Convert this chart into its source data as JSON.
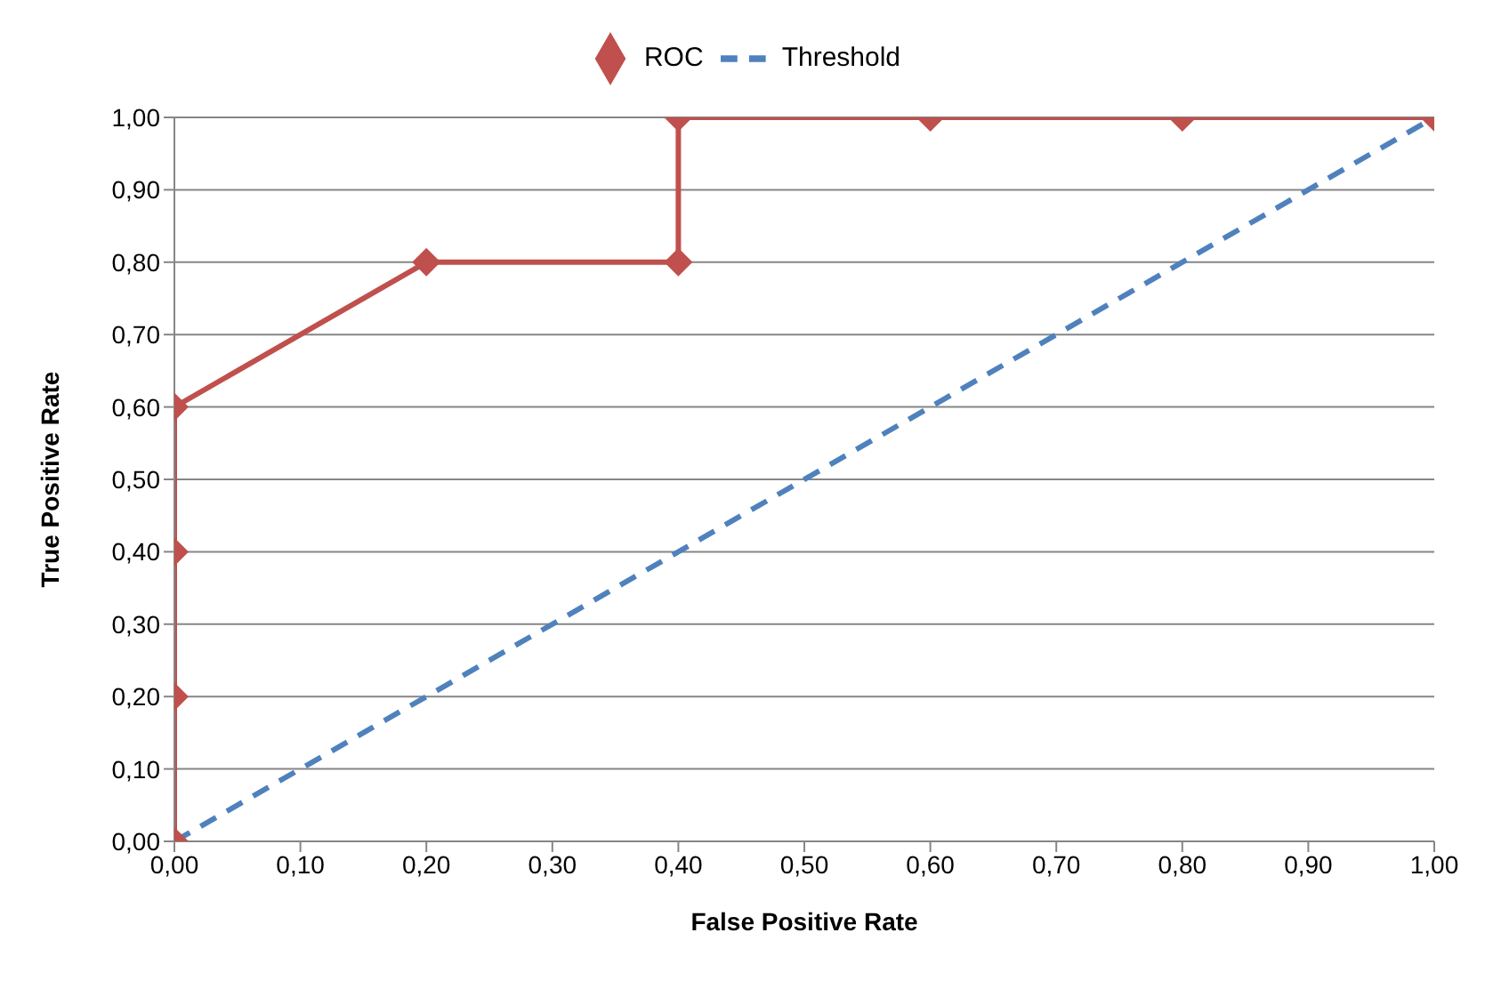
{
  "chart_data": {
    "type": "line",
    "xlabel": "False Positive Rate",
    "ylabel": "True Positive Rate",
    "legend": "top",
    "grid": "y",
    "xlim": [
      0,
      1
    ],
    "ylim": [
      0,
      1
    ],
    "xticks": [
      {
        "value": 0,
        "label": "0,00"
      },
      {
        "value": 0.1,
        "label": "0,10"
      },
      {
        "value": 0.2,
        "label": "0,20"
      },
      {
        "value": 0.3,
        "label": "0,30"
      },
      {
        "value": 0.4,
        "label": "0,40"
      },
      {
        "value": 0.5,
        "label": "0,50"
      },
      {
        "value": 0.6,
        "label": "0,60"
      },
      {
        "value": 0.7,
        "label": "0,70"
      },
      {
        "value": 0.8,
        "label": "0,80"
      },
      {
        "value": 0.9,
        "label": "0,90"
      },
      {
        "value": 1,
        "label": "1,00"
      }
    ],
    "yticks": [
      {
        "value": 0,
        "label": "0,00"
      },
      {
        "value": 0.1,
        "label": "0,10"
      },
      {
        "value": 0.2,
        "label": "0,20"
      },
      {
        "value": 0.3,
        "label": "0,30"
      },
      {
        "value": 0.4,
        "label": "0,40"
      },
      {
        "value": 0.5,
        "label": "0,50"
      },
      {
        "value": 0.6,
        "label": "0,60"
      },
      {
        "value": 0.7,
        "label": "0,70"
      },
      {
        "value": 0.8,
        "label": "0,80"
      },
      {
        "value": 0.9,
        "label": "0,90"
      },
      {
        "value": 1,
        "label": "1,00"
      }
    ],
    "series": [
      {
        "name": "Threshold",
        "color": "#4f81bd",
        "line_style": "dashed",
        "marker": "none",
        "x": [
          0,
          1
        ],
        "values": [
          0,
          1
        ]
      },
      {
        "name": "ROC",
        "color": "#c0504d",
        "line_style": "solid",
        "marker": "diamond",
        "x": [
          0,
          0,
          0,
          0,
          0.2,
          0.4,
          0.4,
          0.6,
          0.8,
          1
        ],
        "values": [
          0,
          0.2,
          0.4,
          0.6,
          0.8,
          0.8,
          1,
          1,
          1,
          1
        ]
      }
    ]
  }
}
